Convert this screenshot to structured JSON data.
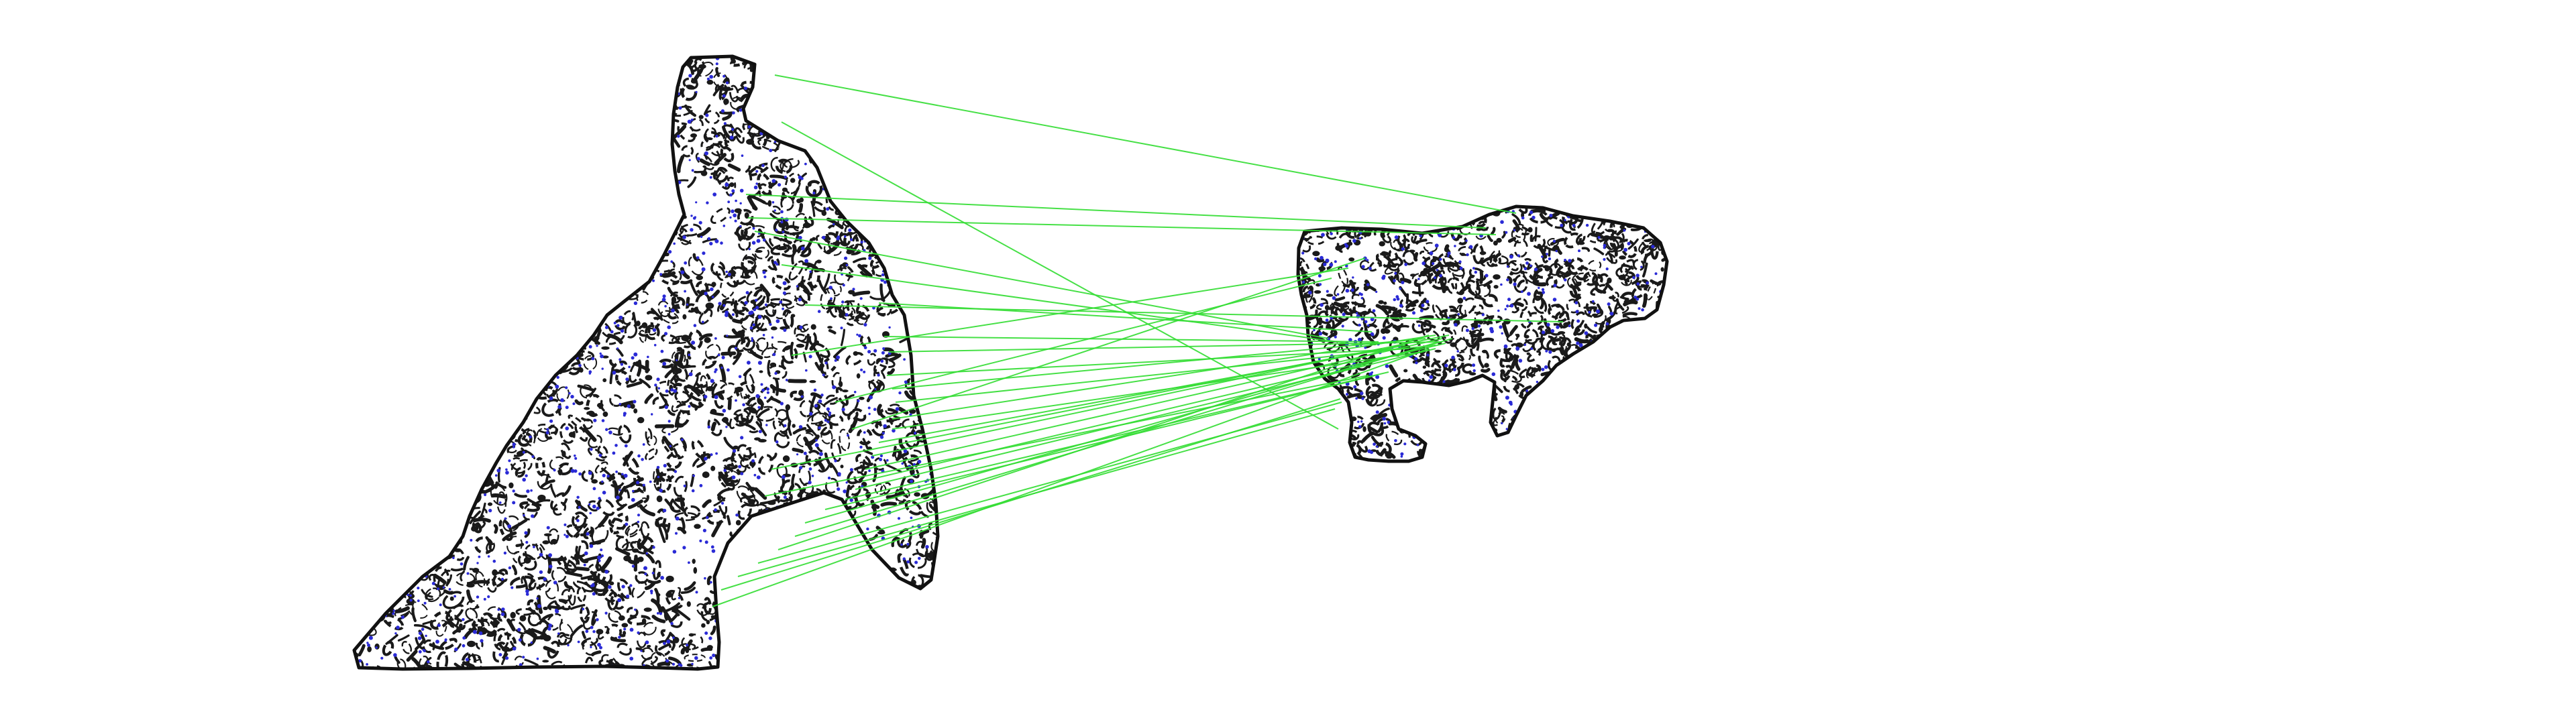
{
  "figure": {
    "kind": "keypoint-correspondence-visualization",
    "panels": [
      {
        "name": "left-pattern-shape",
        "pattern": "leopard-rosette"
      },
      {
        "name": "right-pattern-shape",
        "pattern": "leopard-rosette"
      }
    ],
    "match_lines_shown": 34
  },
  "colors": {
    "background": "#ffffff",
    "outline": "#111111",
    "texture": "#1a1a1a",
    "keypoint": "#2a2ad6",
    "match_line": "#33dd33"
  }
}
